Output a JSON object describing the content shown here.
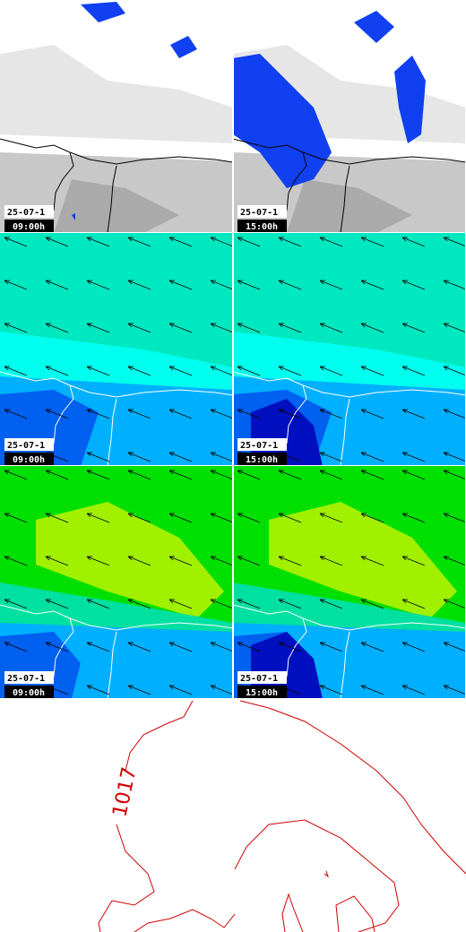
{
  "panels": [
    {
      "date": "25-07-1",
      "time": "09:00h"
    },
    {
      "date": "25-07-1",
      "time": "15:00h"
    },
    {
      "date": "25-07-1",
      "time": "09:00h"
    },
    {
      "date": "25-07-1",
      "time": "15:00h"
    },
    {
      "date": "25-07-1",
      "time": "09:00h"
    },
    {
      "date": "25-07-1",
      "time": "15:00h"
    }
  ],
  "contour_label": "1017"
}
